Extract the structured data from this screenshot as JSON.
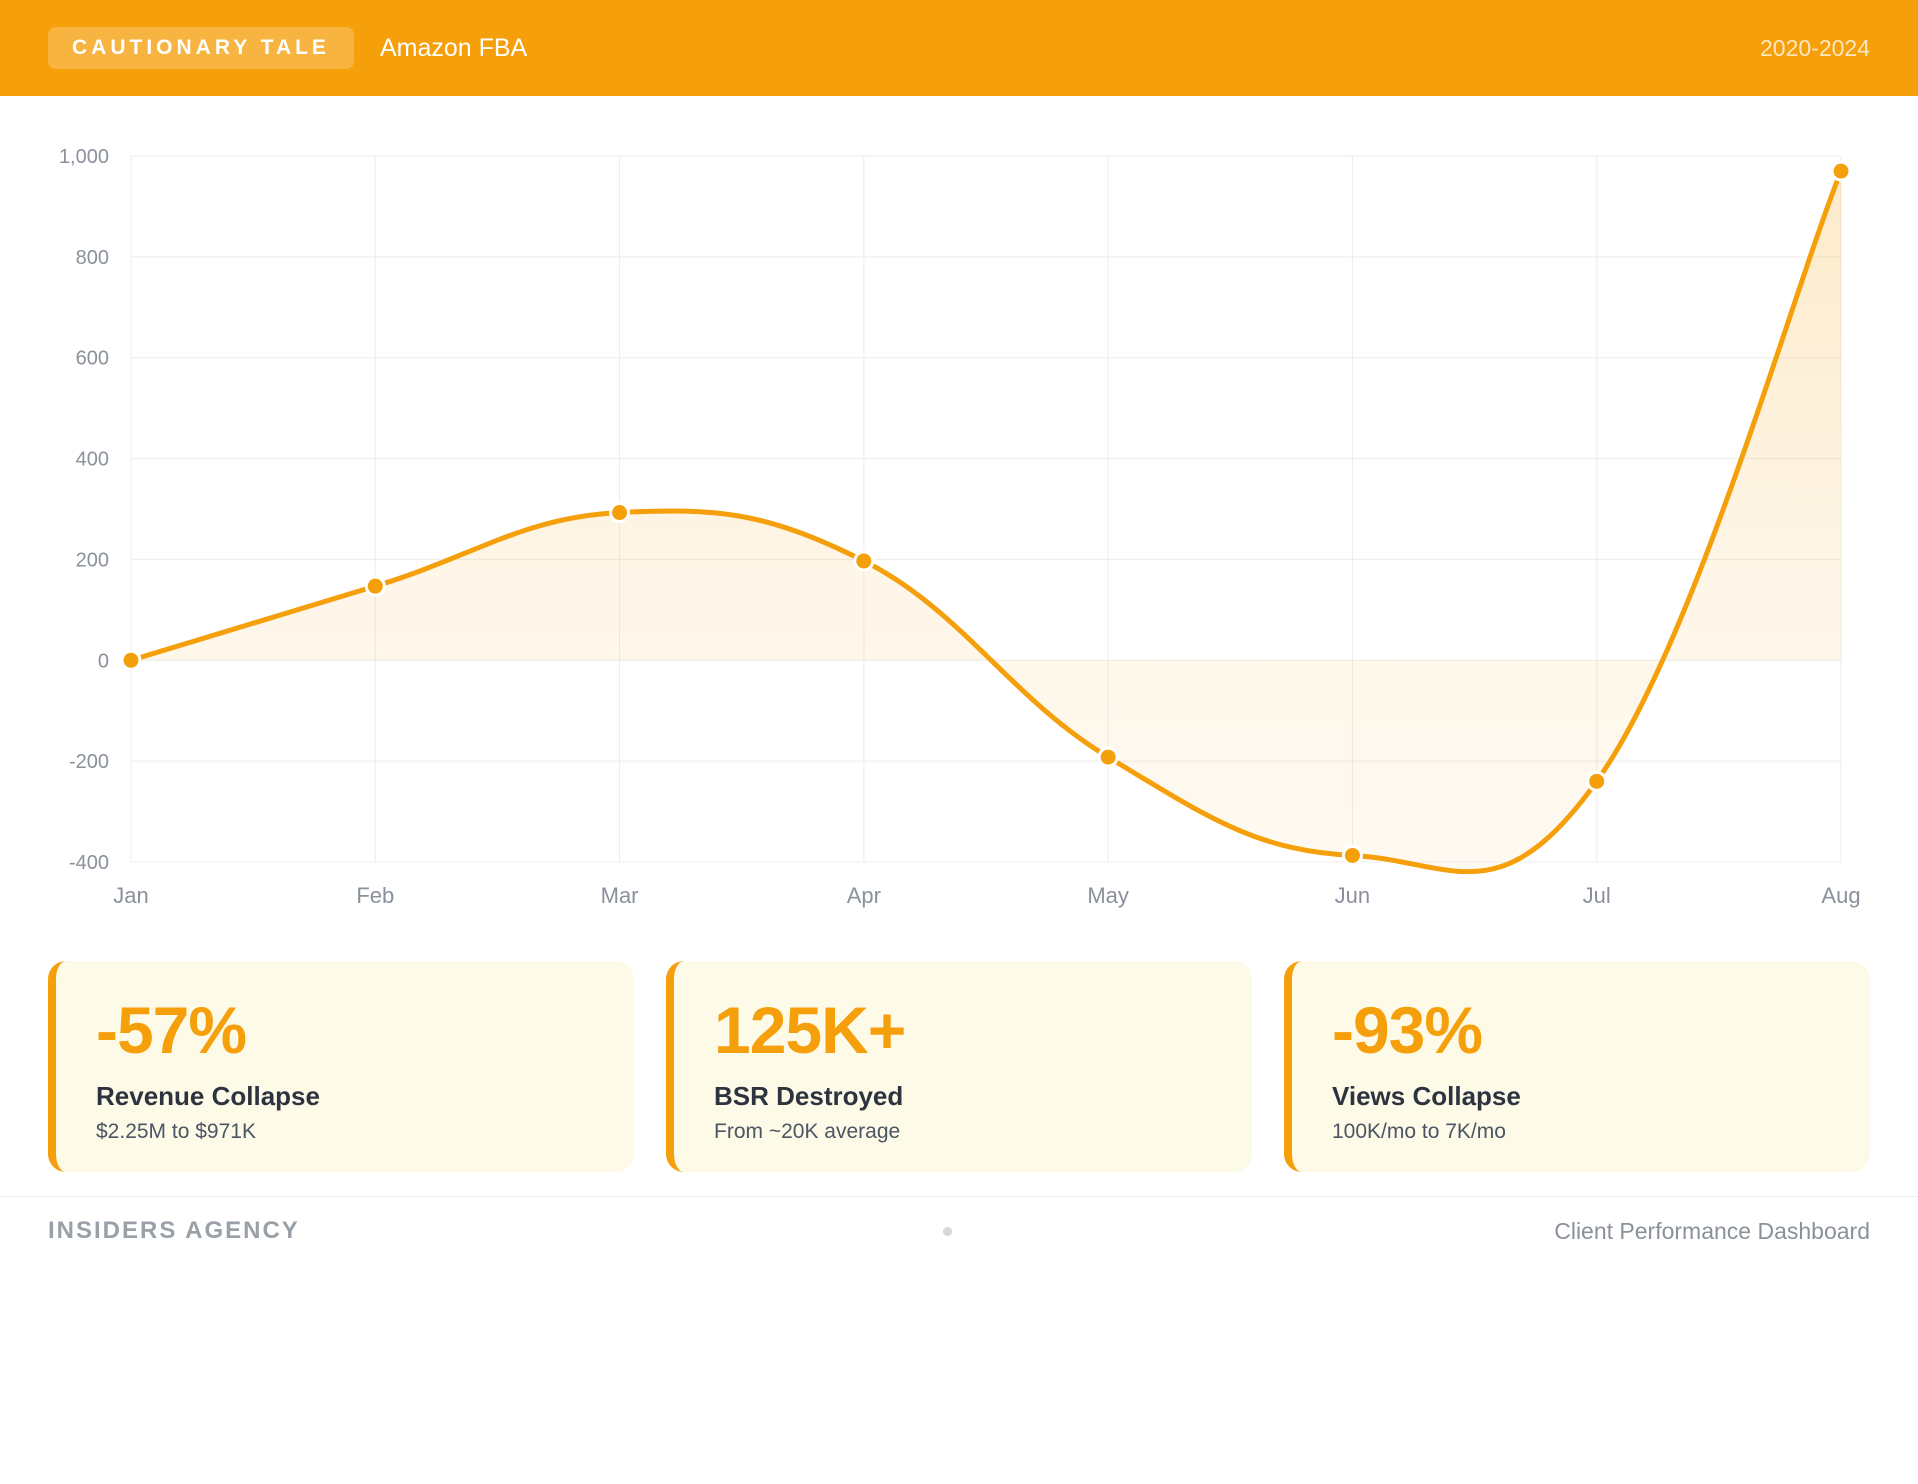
{
  "header": {
    "tag": "CAUTIONARY TALE",
    "brand": "Amazon FBA",
    "years": "2020-2024"
  },
  "colors": {
    "accent": "#f59f0b",
    "card_bg": "#fefae8",
    "axis_text": "#8b919a",
    "grid": "#ececec"
  },
  "chart_data": {
    "type": "line",
    "categories": [
      "Jan",
      "Feb",
      "Mar",
      "Apr",
      "May",
      "Jun",
      "Jul",
      "Aug"
    ],
    "series": [
      {
        "values": [
          0,
          147,
          293,
          197,
          -192,
          -387,
          -240,
          970
        ]
      }
    ],
    "ylim": [
      -400,
      1000
    ],
    "yticks": [
      -400,
      -200,
      0,
      200,
      400,
      600,
      800,
      1000
    ],
    "ytick_labels": [
      "-400",
      "-200",
      "0",
      "200",
      "400",
      "600",
      "800",
      "1,000"
    ],
    "smooth": true,
    "area_fill": true,
    "grid": true
  },
  "stats": [
    {
      "value": "-57%",
      "label": "Revenue Collapse",
      "sub": "$2.25M to $971K"
    },
    {
      "value": "125K+",
      "label": "BSR Destroyed",
      "sub": "From ~20K average"
    },
    {
      "value": "-93%",
      "label": "Views Collapse",
      "sub": "100K/mo to 7K/mo"
    }
  ],
  "footer": {
    "agency": "INSIDERS AGENCY",
    "dashboard": "Client Performance Dashboard"
  }
}
